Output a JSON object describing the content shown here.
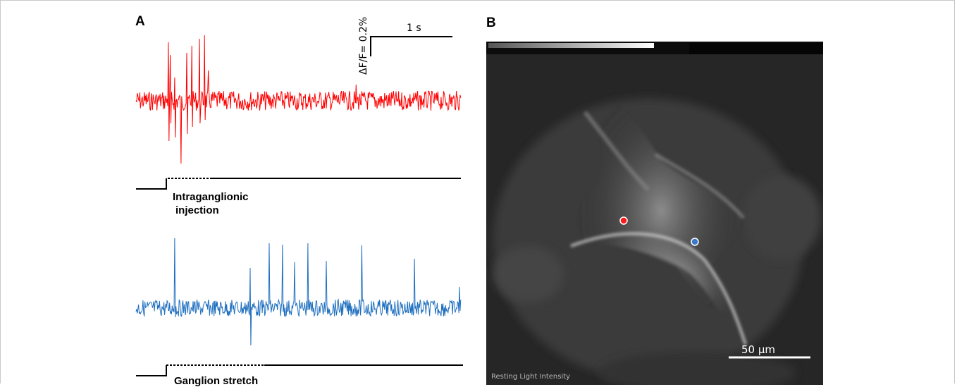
{
  "panel_a": {
    "label": "A",
    "scale_bar": {
      "amplitude_label": "ΔF/F= 0.2%",
      "time_label": "1 s"
    },
    "trace_colors": {
      "red_trace": "#ff0000",
      "blue_trace": "#1f6fbf"
    },
    "stimulus_1": {
      "line1": "Intraganglionic",
      "line2": "injection"
    },
    "stimulus_2": {
      "line1": "Ganglion stretch"
    }
  },
  "panel_b": {
    "label": "B",
    "scale_bar_label": "50 µm",
    "footer_label": "Resting Light Intensity",
    "roi_colors": {
      "red_roi": "#ff1a1a",
      "blue_roi": "#3a78c8"
    }
  }
}
